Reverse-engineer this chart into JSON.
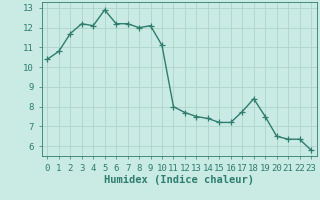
{
  "x": [
    0,
    1,
    2,
    3,
    4,
    5,
    6,
    7,
    8,
    9,
    10,
    11,
    12,
    13,
    14,
    15,
    16,
    17,
    18,
    19,
    20,
    21,
    22,
    23
  ],
  "y": [
    10.4,
    10.8,
    11.7,
    12.2,
    12.1,
    12.9,
    12.2,
    12.2,
    12.0,
    12.1,
    11.1,
    8.0,
    7.7,
    7.5,
    7.4,
    7.2,
    7.2,
    7.75,
    8.4,
    7.5,
    6.5,
    6.35,
    6.35,
    5.8
  ],
  "line_color": "#2e7d6e",
  "marker": "+",
  "marker_size": 4,
  "bg_color": "#caeae4",
  "grid_color": "#aed4ce",
  "xlabel": "Humidex (Indice chaleur)",
  "xlim": [
    -0.5,
    23.5
  ],
  "ylim": [
    5.5,
    13.3
  ],
  "yticks": [
    6,
    7,
    8,
    9,
    10,
    11,
    12,
    13
  ],
  "xticks": [
    0,
    1,
    2,
    3,
    4,
    5,
    6,
    7,
    8,
    9,
    10,
    11,
    12,
    13,
    14,
    15,
    16,
    17,
    18,
    19,
    20,
    21,
    22,
    23
  ],
  "tick_labelsize": 6.5,
  "xlabel_fontsize": 7.5,
  "line_width": 1.0,
  "marker_edge_width": 0.9
}
